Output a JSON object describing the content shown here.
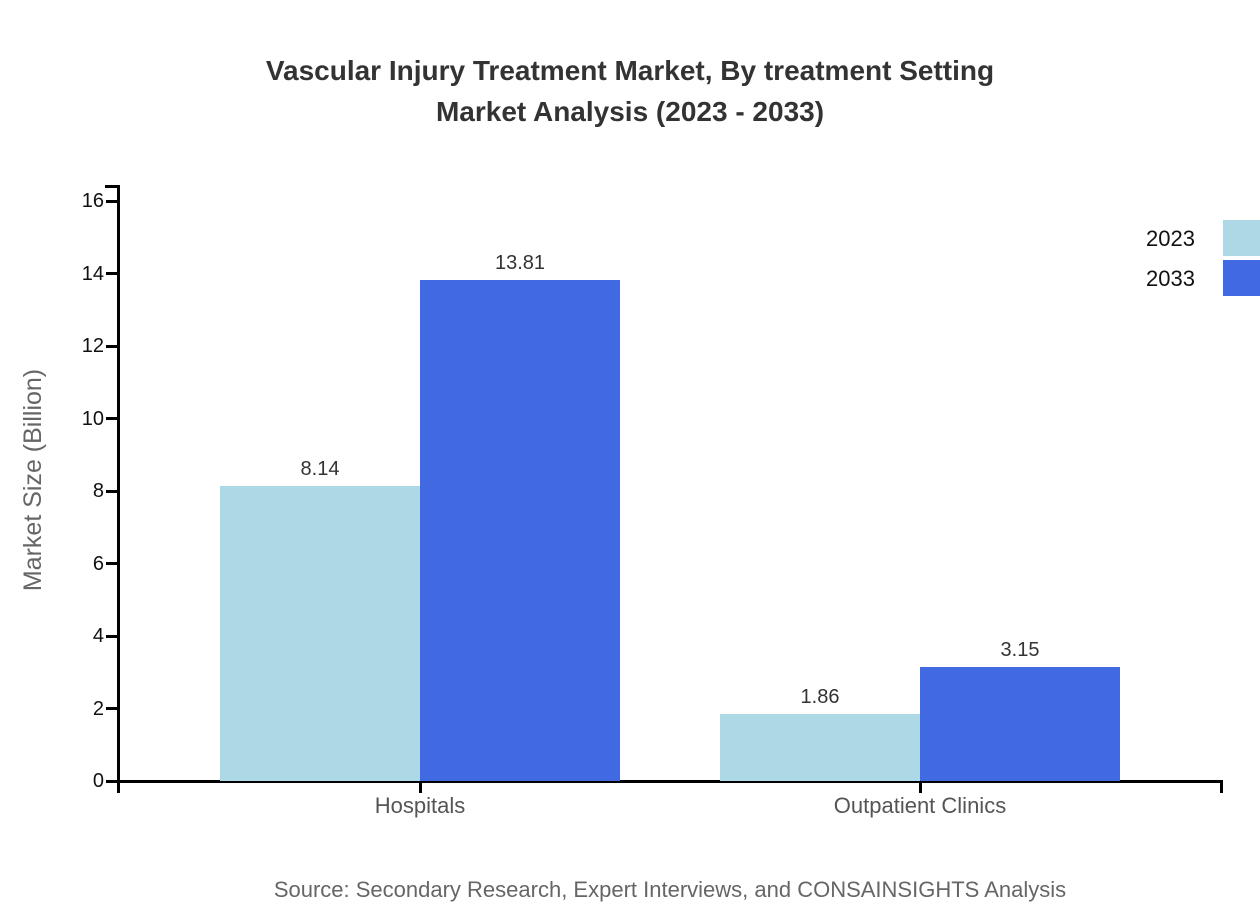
{
  "title": {
    "line1": "Vascular Injury Treatment Market, By treatment Setting",
    "line2": "Market Analysis (2023 - 2033)"
  },
  "source_note": "Source: Secondary Research, Expert Interviews, and CONSAINSIGHTS Analysis",
  "chart_data": {
    "type": "bar",
    "categories": [
      "Hospitals",
      "Outpatient Clinics"
    ],
    "series": [
      {
        "name": "2023",
        "color": "#ADD8E6",
        "values": [
          8.14,
          1.86
        ]
      },
      {
        "name": "2033",
        "color": "#4169E1",
        "values": [
          13.81,
          3.15
        ]
      }
    ],
    "value_labels": [
      [
        "8.14",
        "1.86"
      ],
      [
        "13.81",
        "3.15"
      ]
    ],
    "title": "Vascular Injury Treatment Market, By treatment Setting Market Analysis (2023 - 2033)",
    "xlabel": "",
    "ylabel": "Market Size (Billion)",
    "ylim": [
      0,
      16
    ],
    "yticks": [
      0,
      2,
      4,
      6,
      8,
      10,
      12,
      14,
      16
    ],
    "grid": false,
    "legend_position": "top-right",
    "axis_color": "#000000",
    "background_color": "#ffffff"
  }
}
